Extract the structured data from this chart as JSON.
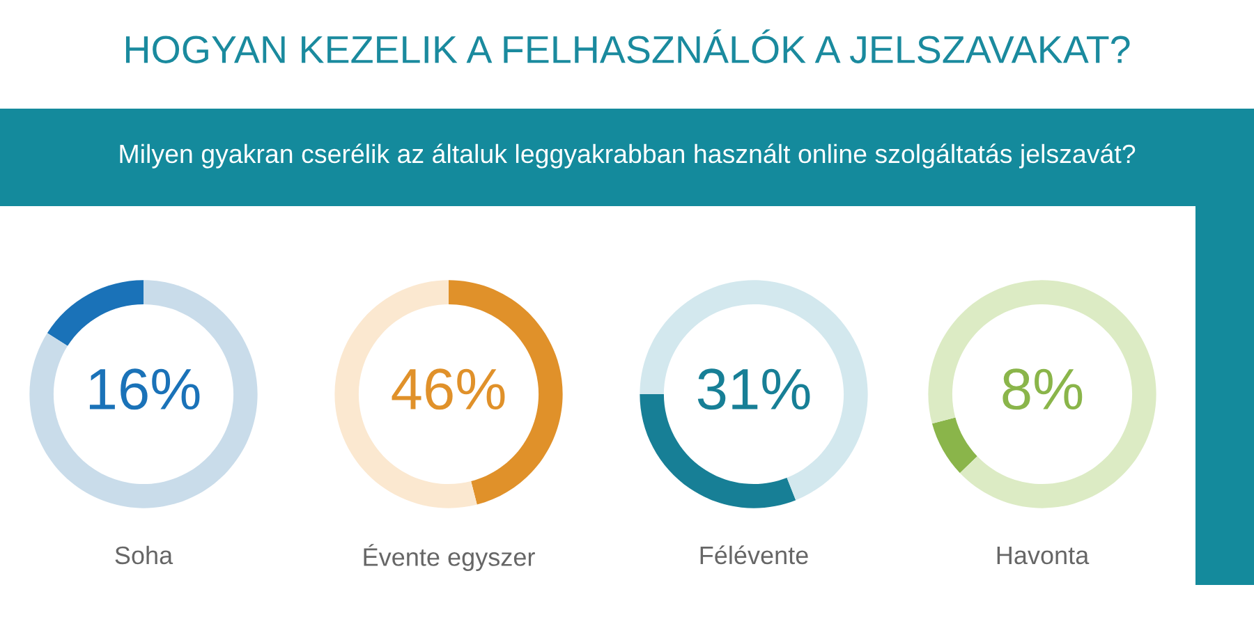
{
  "chart_data": [
    {
      "type": "other",
      "title": "HOGYAN KEZELIK A FELHASZNÁLÓK A JELSZAVAKAT?",
      "subtitle": "Milyen gyakran cserélik az általuk leggyakrabban használt online szolgáltatás jelszavát?"
    },
    {
      "type": "donut",
      "title": "Soha",
      "categories": [
        null,
        null
      ],
      "values": [
        16,
        84
      ],
      "colors": [
        "#1a72b8",
        "#c9dcea"
      ],
      "annotations": [
        "16%"
      ]
    },
    {
      "type": "donut",
      "title": "Évente egyszer",
      "categories": [
        null,
        null
      ],
      "values": [
        46,
        54
      ],
      "colors": [
        "#e0912a",
        "#fbe8d0"
      ],
      "annotations": [
        "46%"
      ]
    },
    {
      "type": "donut",
      "title": "Félévente",
      "categories": [
        null,
        null
      ],
      "values": [
        31,
        69
      ],
      "colors": [
        "#177f96",
        "#d3e8ee"
      ],
      "annotations": [
        "31%"
      ]
    },
    {
      "type": "donut",
      "title": "Havonta",
      "categories": [
        null,
        null
      ],
      "values": [
        8,
        92
      ],
      "colors": [
        "#8ab54a",
        "#dcebc4"
      ],
      "annotations": [
        "8%"
      ]
    }
  ]
}
